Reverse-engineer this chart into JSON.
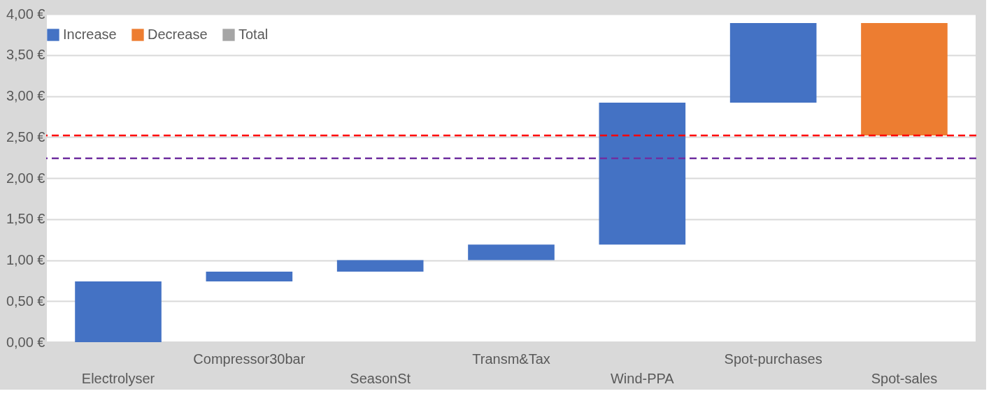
{
  "chart_data": {
    "type": "bar",
    "categories": [
      "Electrolyser",
      "Compressor30bar",
      "SeasonSt",
      "Transm&Tax",
      "Wind-PPA",
      "Spot-purchases",
      "Spot-sales"
    ],
    "series": [
      {
        "name": "Increase",
        "color": "#4472c4",
        "base": [
          0,
          0.74,
          0.86,
          1.0,
          1.19,
          2.92,
          null
        ],
        "values": [
          0.74,
          0.12,
          0.14,
          0.19,
          1.73,
          0.97,
          null
        ]
      },
      {
        "name": "Decrease",
        "color": "#ed7d31",
        "base": [
          null,
          null,
          null,
          null,
          null,
          null,
          3.89
        ],
        "values": [
          null,
          null,
          null,
          null,
          null,
          null,
          -1.37
        ]
      },
      {
        "name": "Total",
        "color": "#a5a5a5",
        "values": [
          null,
          null,
          null,
          null,
          null,
          null,
          null
        ]
      }
    ],
    "ylim": [
      0,
      4
    ],
    "yticks": [
      {
        "value": 0,
        "label": "0,00 €"
      },
      {
        "value": 0.5,
        "label": "0,50 €"
      },
      {
        "value": 1,
        "label": "1,00 €"
      },
      {
        "value": 1.5,
        "label": "1,50 €"
      },
      {
        "value": 2,
        "label": "2,00 €"
      },
      {
        "value": 2.5,
        "label": "2,50 €"
      },
      {
        "value": 3,
        "label": "3,00 €"
      },
      {
        "value": 3.5,
        "label": "3,50 €"
      },
      {
        "value": 4,
        "label": "4,00 €"
      }
    ],
    "ref_lines": [
      {
        "axis": "y",
        "value": 2.52,
        "color": "#ff0000",
        "line_style": "dashed"
      },
      {
        "axis": "y",
        "value": 2.24,
        "color": "#7030a0",
        "line_style": "dashed"
      }
    ],
    "grid": "y",
    "legend": "top"
  }
}
